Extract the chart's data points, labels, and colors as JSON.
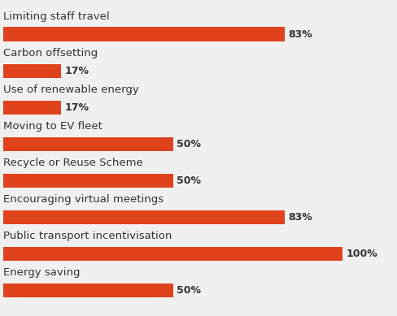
{
  "categories": [
    "Limiting staff travel",
    "Carbon offsetting",
    "Use of renewable energy",
    "Moving to EV fleet",
    "Recycle or Reuse Scheme",
    "Encouraging virtual meetings",
    "Public transport incentivisation",
    "Energy saving"
  ],
  "values": [
    83,
    17,
    17,
    50,
    50,
    83,
    100,
    50
  ],
  "bar_color": "#e0431c",
  "label_color": "#333333",
  "value_color": "#333333",
  "background_color": "#f0f0f0",
  "bar_height": 0.38,
  "label_fontsize": 9.5,
  "value_fontsize": 9,
  "xlim": [
    0,
    115
  ],
  "figsize": [
    4.88,
    3.89
  ],
  "dpi": 100
}
